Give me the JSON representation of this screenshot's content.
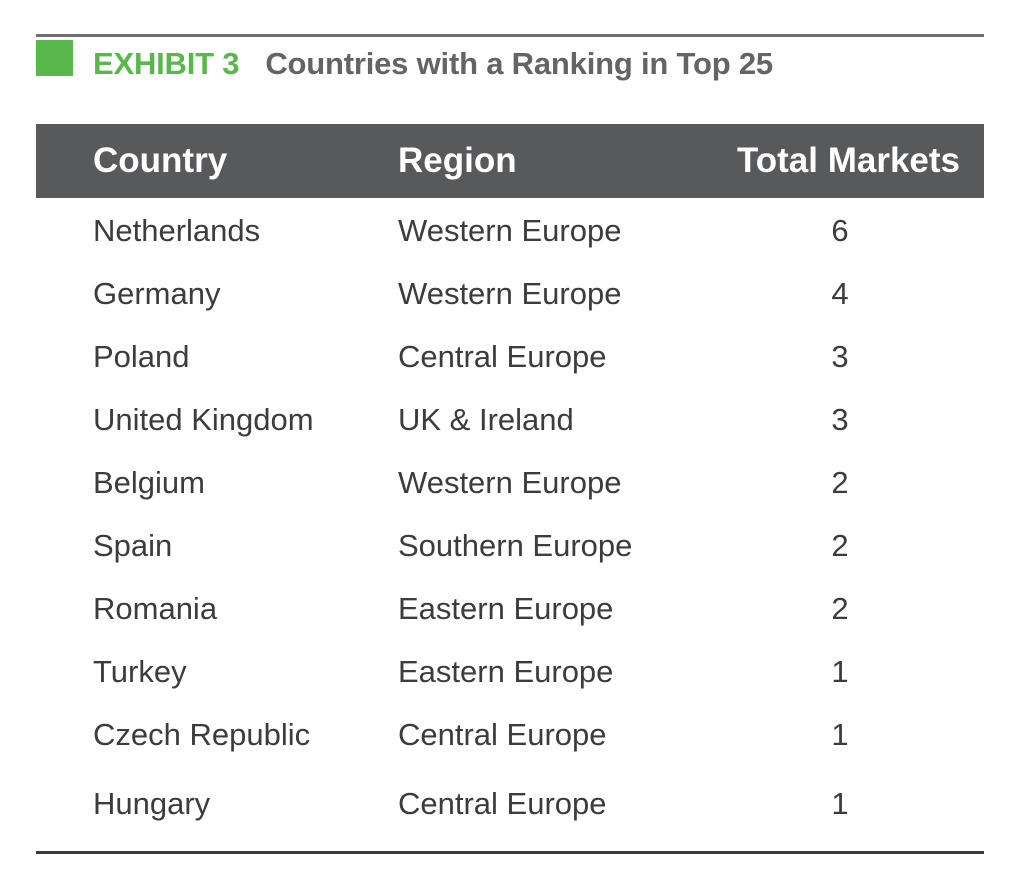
{
  "exhibit": {
    "label": "EXHIBIT 3",
    "title": "Countries with a Ranking in Top 25",
    "accent_color": "#59b84c"
  },
  "table": {
    "headers": {
      "country": "Country",
      "region": "Region",
      "total": "Total Markets"
    },
    "header_background": "#58595b",
    "rows": [
      {
        "country": "Netherlands",
        "region": "Western Europe",
        "total": "6"
      },
      {
        "country": "Germany",
        "region": "Western Europe",
        "total": "4"
      },
      {
        "country": "Poland",
        "region": "Central Europe",
        "total": "3"
      },
      {
        "country": "United Kingdom",
        "region": "UK & Ireland",
        "total": "3"
      },
      {
        "country": "Belgium",
        "region": "Western Europe",
        "total": "2"
      },
      {
        "country": "Spain",
        "region": "Southern Europe",
        "total": "2"
      },
      {
        "country": "Romania",
        "region": "Eastern Europe",
        "total": "2"
      },
      {
        "country": "Turkey",
        "region": "Eastern Europe",
        "total": "1"
      },
      {
        "country": "Czech Republic",
        "region": "Central Europe",
        "total": "1"
      },
      {
        "country": "Hungary",
        "region": "Central Europe",
        "total": "1"
      }
    ]
  }
}
